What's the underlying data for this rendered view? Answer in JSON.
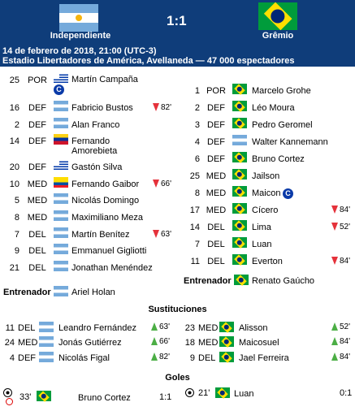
{
  "header": {
    "home_team": "Independiente",
    "away_team": "Grêmio",
    "score": "1:1",
    "date_line": "14 de febrero de 2018, 21:00 (UTC-3)",
    "venue_line": "Estadio Libertadores de América, Avellaneda — 47 000 espectadores",
    "colors": {
      "bar": "#0f3d7a"
    }
  },
  "home": {
    "players": [
      {
        "num": "25",
        "pos": "POR",
        "name": "Martín Campaña",
        "flag": "uy",
        "captain": true,
        "event": "",
        "event_type": ""
      },
      {
        "num": "16",
        "pos": "DEF",
        "name": "Fabricio Bustos",
        "flag": "ar",
        "event": "82'",
        "event_type": "out"
      },
      {
        "num": "2",
        "pos": "DEF",
        "name": "Alan Franco",
        "flag": "ar",
        "event": "",
        "event_type": ""
      },
      {
        "num": "14",
        "pos": "DEF",
        "name": "Fernando Amorebieta",
        "flag": "ve",
        "event": "",
        "event_type": ""
      },
      {
        "num": "20",
        "pos": "DEF",
        "name": "Gastón Silva",
        "flag": "uy",
        "event": "",
        "event_type": ""
      },
      {
        "num": "10",
        "pos": "MED",
        "name": "Fernando Gaibor",
        "flag": "ec",
        "event": "66'",
        "event_type": "out"
      },
      {
        "num": "5",
        "pos": "MED",
        "name": "Nicolás Domingo",
        "flag": "ar",
        "event": "",
        "event_type": ""
      },
      {
        "num": "8",
        "pos": "MED",
        "name": "Maximiliano Meza",
        "flag": "ar",
        "event": "",
        "event_type": ""
      },
      {
        "num": "7",
        "pos": "DEL",
        "name": "Martín Benítez",
        "flag": "ar",
        "event": "63'",
        "event_type": "out"
      },
      {
        "num": "9",
        "pos": "DEL",
        "name": "Emmanuel Gigliotti",
        "flag": "ar",
        "event": "",
        "event_type": ""
      },
      {
        "num": "21",
        "pos": "DEL",
        "name": "Jonathan Menéndez",
        "flag": "ar",
        "event": "",
        "event_type": ""
      }
    ],
    "coach_label": "Entrenador",
    "coach": "Ariel Holan",
    "subs": [
      {
        "num": "11",
        "pos": "DEL",
        "name": "Leandro Fernández",
        "event": "63'"
      },
      {
        "num": "24",
        "pos": "MED",
        "name": "Jonás Gutiérrez",
        "event": "66'"
      },
      {
        "num": "4",
        "pos": "DEF",
        "name": "Nicolás Figal",
        "event": "82'"
      }
    ]
  },
  "away": {
    "players": [
      {
        "num": "1",
        "pos": "POR",
        "name": "Marcelo Grohe",
        "flag": "br",
        "event": "",
        "event_type": ""
      },
      {
        "num": "2",
        "pos": "DEF",
        "name": "Léo Moura",
        "flag": "br",
        "event": "",
        "event_type": ""
      },
      {
        "num": "3",
        "pos": "DEF",
        "name": "Pedro Geromel",
        "flag": "br",
        "event": "",
        "event_type": ""
      },
      {
        "num": "4",
        "pos": "DEF",
        "name": "Walter Kannemann",
        "flag": "ar",
        "event": "",
        "event_type": ""
      },
      {
        "num": "6",
        "pos": "DEF",
        "name": "Bruno Cortez",
        "flag": "br",
        "event": "",
        "event_type": ""
      },
      {
        "num": "25",
        "pos": "MED",
        "name": "Jailson",
        "flag": "br",
        "event": "",
        "event_type": ""
      },
      {
        "num": "8",
        "pos": "MED",
        "name": "Maicon",
        "flag": "br",
        "captain": true,
        "event": "",
        "event_type": ""
      },
      {
        "num": "17",
        "pos": "MED",
        "name": "Cícero",
        "flag": "br",
        "event": "84'",
        "event_type": "out"
      },
      {
        "num": "14",
        "pos": "DEL",
        "name": "Lima",
        "flag": "br",
        "event": "52'",
        "event_type": "out"
      },
      {
        "num": "7",
        "pos": "DEL",
        "name": "Luan",
        "flag": "br",
        "event": "",
        "event_type": ""
      },
      {
        "num": "11",
        "pos": "DEL",
        "name": "Everton",
        "flag": "br",
        "event": "84'",
        "event_type": "out"
      }
    ],
    "coach_label": "Entrenador",
    "coach": "Renato Gaúcho",
    "subs": [
      {
        "num": "23",
        "pos": "MED",
        "name": "Alisson",
        "event": "52'"
      },
      {
        "num": "18",
        "pos": "MED",
        "name": "Maicosuel",
        "event": "84'"
      },
      {
        "num": "9",
        "pos": "DEL",
        "name": "Jael Ferreira",
        "event": "84'"
      }
    ]
  },
  "captain_mark": "C",
  "subs_title": "Sustituciones",
  "goals_title": "Goles",
  "goals": [
    {
      "minute": "33'",
      "scorer": "Bruno Cortez",
      "score": "1:1",
      "note": "own-goal"
    },
    {
      "minute": "21'",
      "scorer": "Luan",
      "score": "0:1"
    }
  ]
}
